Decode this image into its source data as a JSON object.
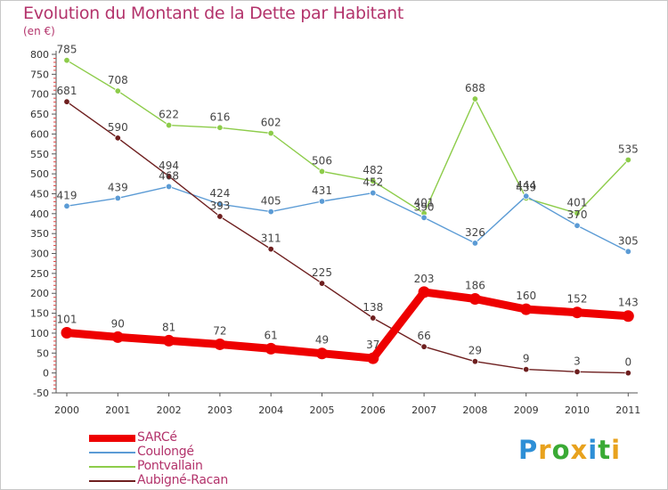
{
  "chart_data": {
    "type": "line",
    "title": "Evolution du Montant de la Dette par Habitant",
    "subtitle": "(en €)",
    "x": [
      "2000",
      "2001",
      "2002",
      "2003",
      "2004",
      "2005",
      "2006",
      "2007",
      "2008",
      "2009",
      "2010",
      "2011"
    ],
    "ylim": [
      -50,
      800
    ],
    "yticks": [
      -50,
      0,
      50,
      100,
      150,
      200,
      250,
      300,
      350,
      400,
      450,
      500,
      550,
      600,
      650,
      700,
      750,
      800
    ],
    "grid": false,
    "legend_position": "bottom-left",
    "series": [
      {
        "name": "Pontvallain",
        "color": "#8dcc4a",
        "values": [
          785,
          708,
          622,
          616,
          602,
          506,
          482,
          401,
          688,
          439,
          401,
          535
        ]
      },
      {
        "name": "Coulongé",
        "color": "#5b9bd5",
        "values": [
          419,
          439,
          468,
          424,
          405,
          431,
          452,
          390,
          326,
          444,
          370,
          305
        ]
      },
      {
        "name": "Aubigné-Racan",
        "color": "#6e1f1f",
        "values": [
          681,
          590,
          494,
          393,
          311,
          225,
          138,
          66,
          29,
          9,
          3,
          0
        ]
      },
      {
        "name": "SARCé",
        "color": "#ee0000",
        "values": [
          101,
          90,
          81,
          72,
          61,
          49,
          37,
          203,
          186,
          160,
          152,
          143
        ]
      }
    ],
    "legend_order": [
      "SARCé",
      "Coulongé",
      "Pontvallain",
      "Aubigné-Racan"
    ]
  },
  "brand": {
    "letters": [
      "P",
      "r",
      "o",
      "x",
      "i",
      "t",
      "i"
    ],
    "colors": [
      "#2e8fd6",
      "#e8a21e",
      "#3aaa35",
      "#e8a21e",
      "#2e8fd6",
      "#3aaa35",
      "#e8a21e"
    ]
  }
}
